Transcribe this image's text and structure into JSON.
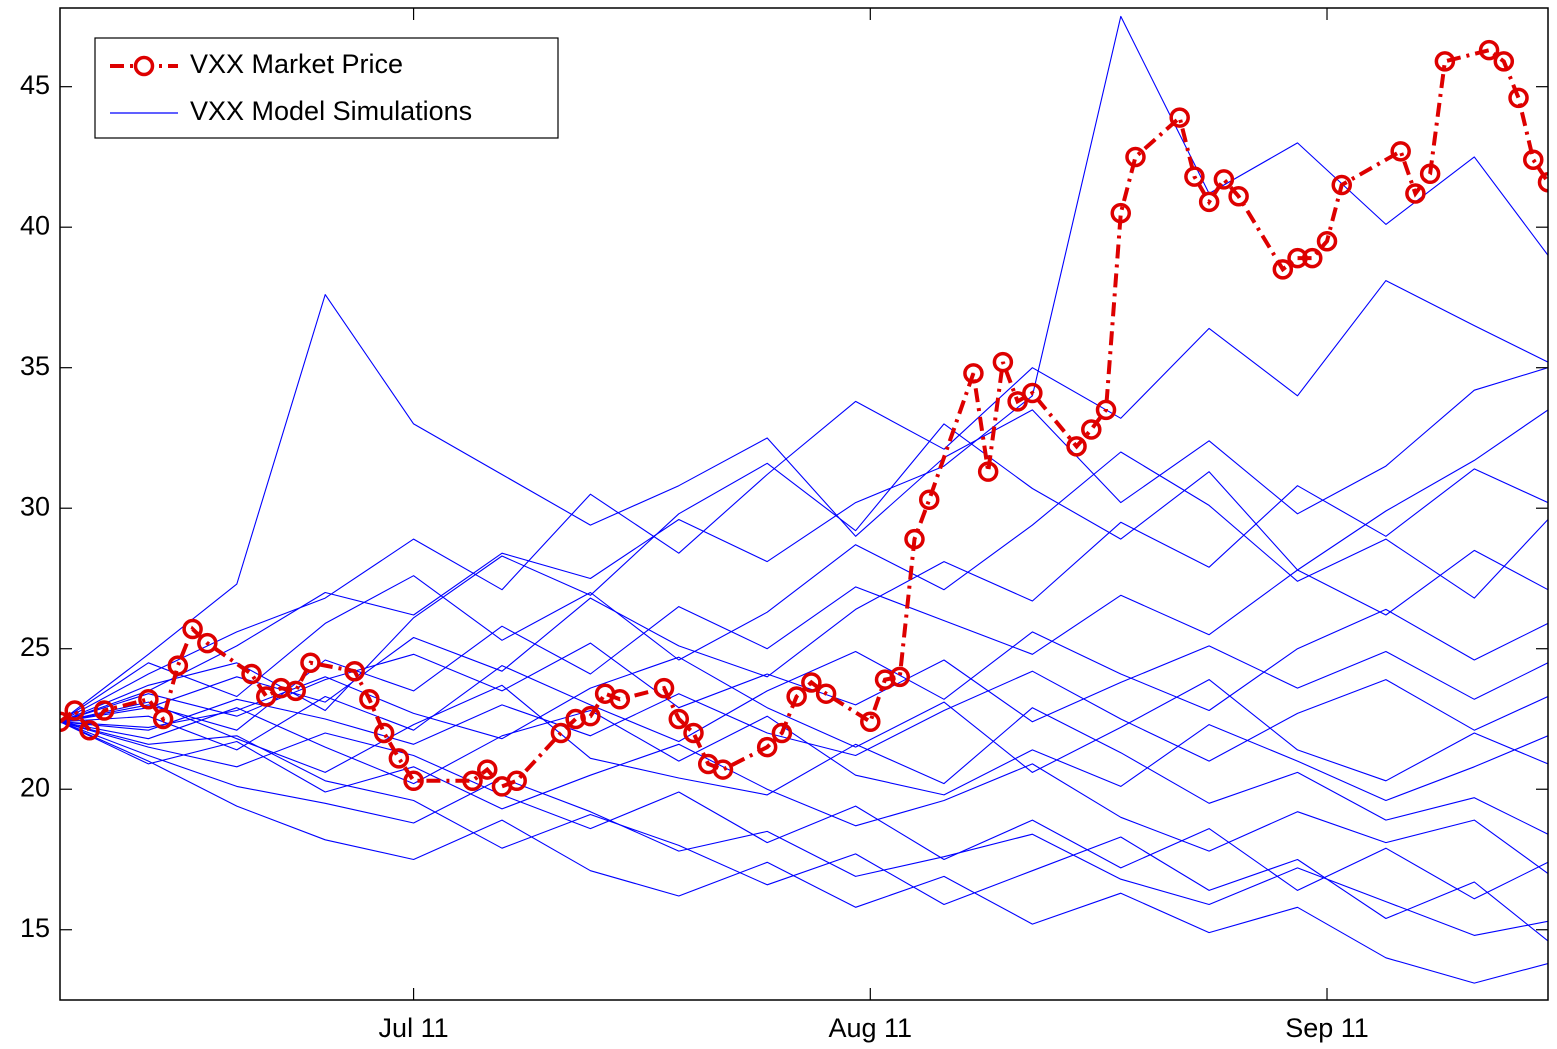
{
  "chart_data": {
    "type": "line",
    "xlim": [
      168,
      269
    ],
    "xticks": [
      {
        "value": 192,
        "label": "Jul 11"
      },
      {
        "value": 223,
        "label": "Aug 11"
      },
      {
        "value": 254,
        "label": "Sep 11"
      }
    ],
    "ylim": [
      12.5,
      47.8
    ],
    "yticks": [
      15,
      20,
      25,
      30,
      35,
      40,
      45
    ],
    "grid": false,
    "legend": "upper left",
    "series": [
      {
        "name": "VXX Market Price",
        "color": "#dd0000",
        "x": [
          168,
          169,
          170,
          171,
          174,
          175,
          176,
          177,
          178,
          181,
          182,
          183,
          184,
          185,
          188,
          189,
          190,
          191,
          192,
          196,
          197,
          198,
          199,
          202,
          203,
          204,
          205,
          206,
          209,
          210,
          211,
          212,
          213,
          216,
          217,
          218,
          219,
          220,
          223,
          224,
          225,
          226,
          227,
          230,
          231,
          232,
          233,
          234,
          237,
          238,
          239,
          240,
          241,
          244,
          245,
          246,
          247,
          248,
          251,
          252,
          253,
          254,
          255,
          259,
          260,
          261,
          262,
          265,
          266,
          267,
          268,
          269
        ],
        "values": [
          22.4,
          22.8,
          22.1,
          22.8,
          23.2,
          22.5,
          24.4,
          25.7,
          25.2,
          24.1,
          23.3,
          23.6,
          23.5,
          24.5,
          24.2,
          23.2,
          22.0,
          21.1,
          20.3,
          20.3,
          20.7,
          20.1,
          20.3,
          22.0,
          22.5,
          22.6,
          23.4,
          23.2,
          23.6,
          22.5,
          22.0,
          20.9,
          20.7,
          21.5,
          22.0,
          23.3,
          23.8,
          23.4,
          22.4,
          23.9,
          24.0,
          28.9,
          30.3,
          34.8,
          31.3,
          35.2,
          33.8,
          34.1,
          32.2,
          32.8,
          33.5,
          40.5,
          42.5,
          43.9,
          41.8,
          40.9,
          41.7,
          41.1,
          38.5,
          38.9,
          38.9,
          39.5,
          41.5,
          42.7,
          41.2,
          41.9,
          45.9,
          46.3,
          45.9,
          44.6,
          42.4,
          41.6
        ]
      }
    ],
    "simulations": {
      "name": "VXX Model Simulations",
      "color": "#0000ff",
      "x": [
        168,
        174,
        180,
        186,
        192,
        198,
        204,
        210,
        216,
        222,
        228,
        234,
        240,
        246,
        252,
        258,
        264,
        269
      ],
      "paths": [
        [
          22.4,
          23.5,
          25.1,
          27.0,
          26.2,
          28.4,
          27.5,
          29.6,
          28.1,
          30.2,
          31.5,
          34.0,
          47.5,
          41.2,
          43.0,
          40.1,
          42.5,
          39.0
        ],
        [
          22.4,
          24.8,
          27.3,
          37.6,
          33.0,
          31.2,
          29.4,
          30.8,
          32.5,
          29.0,
          31.8,
          33.5,
          30.2,
          32.4,
          29.8,
          31.5,
          34.2,
          35.0
        ],
        [
          22.4,
          21.2,
          20.1,
          19.5,
          18.8,
          20.4,
          19.2,
          17.8,
          18.5,
          16.9,
          17.6,
          18.4,
          16.8,
          15.9,
          17.2,
          16.0,
          14.8,
          15.3
        ],
        [
          22.4,
          23.0,
          22.1,
          24.6,
          23.5,
          25.8,
          24.1,
          26.5,
          25.0,
          27.2,
          26.0,
          24.8,
          26.9,
          25.5,
          27.8,
          26.2,
          28.5,
          27.1
        ],
        [
          22.4,
          21.8,
          22.9,
          21.5,
          20.2,
          21.9,
          22.8,
          21.0,
          22.6,
          20.5,
          19.8,
          21.4,
          20.1,
          22.3,
          21.0,
          19.6,
          20.8,
          21.9
        ],
        [
          22.4,
          22.9,
          24.0,
          23.1,
          25.4,
          24.2,
          26.8,
          25.1,
          24.0,
          26.4,
          28.1,
          26.7,
          29.5,
          27.9,
          30.8,
          29.0,
          31.4,
          30.2
        ],
        [
          22.4,
          21.5,
          20.8,
          22.0,
          21.2,
          19.8,
          18.6,
          19.9,
          18.1,
          19.4,
          17.5,
          18.9,
          17.2,
          18.6,
          16.4,
          17.9,
          16.1,
          17.4
        ],
        [
          22.4,
          23.4,
          22.6,
          23.9,
          24.8,
          23.5,
          25.2,
          22.9,
          24.1,
          23.0,
          24.6,
          22.4,
          23.8,
          25.1,
          23.6,
          24.9,
          23.2,
          24.5
        ],
        [
          22.4,
          22.1,
          23.2,
          22.5,
          21.6,
          23.0,
          21.9,
          23.4,
          22.0,
          21.2,
          22.8,
          24.2,
          22.5,
          21.0,
          22.7,
          23.9,
          22.1,
          23.3
        ],
        [
          22.4,
          24.1,
          25.6,
          26.8,
          28.9,
          27.1,
          30.5,
          28.4,
          31.2,
          33.8,
          32.1,
          35.0,
          33.2,
          36.4,
          34.0,
          38.1,
          36.5,
          35.2
        ],
        [
          22.4,
          21.0,
          19.4,
          18.2,
          17.5,
          18.9,
          17.1,
          16.2,
          17.4,
          15.8,
          16.9,
          15.2,
          16.3,
          14.9,
          15.8,
          14.0,
          13.1,
          13.8
        ],
        [
          22.4,
          22.6,
          21.4,
          23.3,
          22.1,
          24.4,
          23.0,
          21.7,
          23.5,
          24.9,
          23.2,
          25.6,
          24.1,
          22.8,
          25.0,
          26.4,
          24.6,
          25.9
        ],
        [
          22.4,
          23.7,
          24.5,
          22.8,
          26.1,
          28.3,
          26.9,
          29.8,
          31.6,
          29.2,
          33.0,
          30.7,
          28.9,
          31.3,
          27.8,
          29.9,
          31.7,
          33.5
        ],
        [
          22.4,
          21.6,
          21.9,
          20.3,
          19.6,
          17.9,
          19.1,
          18.0,
          16.6,
          17.7,
          15.9,
          17.1,
          18.3,
          16.4,
          17.5,
          15.4,
          16.7,
          14.6
        ],
        [
          22.4,
          22.2,
          22.8,
          24.0,
          22.7,
          21.8,
          23.6,
          24.7,
          22.9,
          21.5,
          23.1,
          20.6,
          22.2,
          23.9,
          21.4,
          20.3,
          22.0,
          20.9
        ],
        [
          22.4,
          23.1,
          21.8,
          20.6,
          22.3,
          23.7,
          21.1,
          20.4,
          19.8,
          21.6,
          20.2,
          22.9,
          21.3,
          19.5,
          20.6,
          18.9,
          19.7,
          18.4
        ],
        [
          22.4,
          24.5,
          23.3,
          25.9,
          27.6,
          25.3,
          27.0,
          24.6,
          26.3,
          28.7,
          27.1,
          29.4,
          32.0,
          30.1,
          27.4,
          28.9,
          26.8,
          29.6
        ],
        [
          22.4,
          20.9,
          21.7,
          19.9,
          20.8,
          19.3,
          20.5,
          21.6,
          20.0,
          18.7,
          19.6,
          20.9,
          19.0,
          17.8,
          19.2,
          18.1,
          18.9,
          17.0
        ]
      ]
    }
  }
}
